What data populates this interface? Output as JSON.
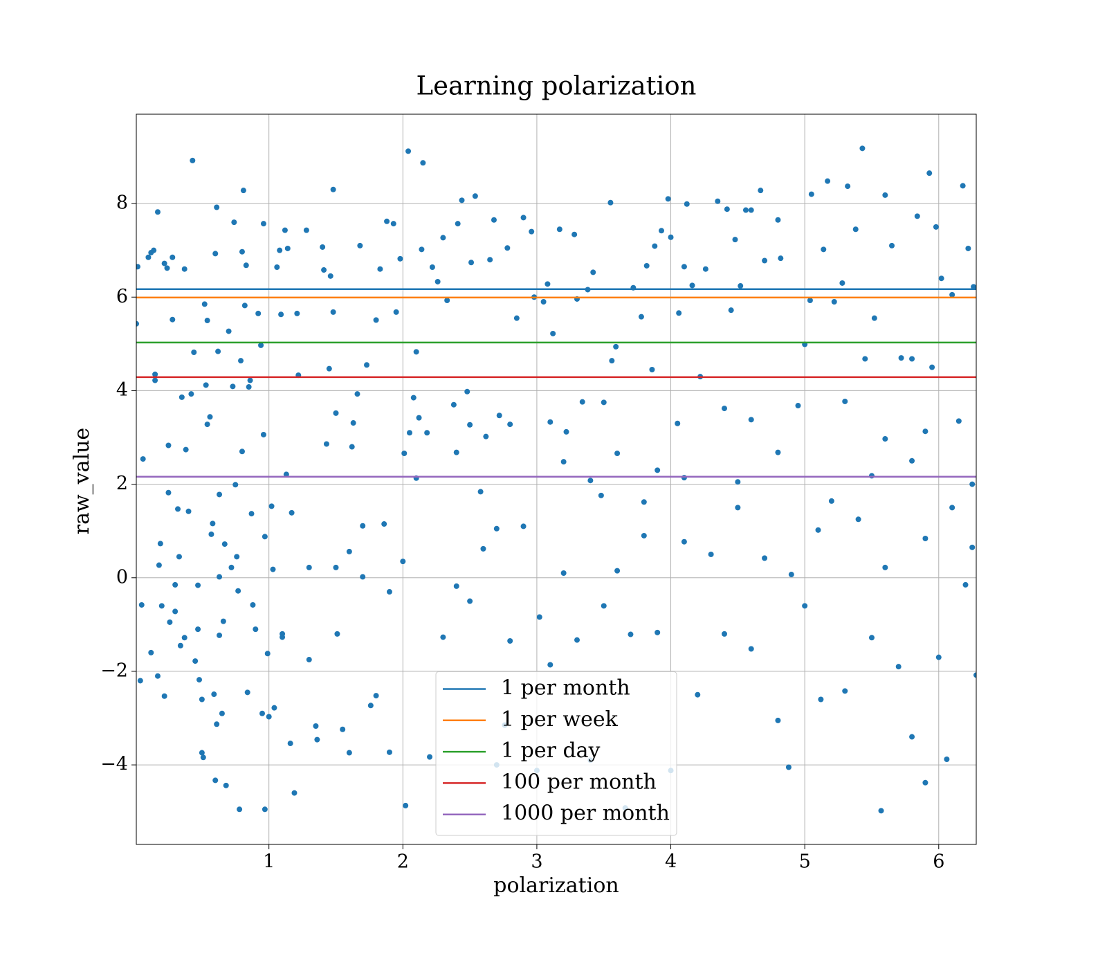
{
  "chart_data": {
    "type": "scatter",
    "title": "Learning polarization",
    "x_label": "polarization",
    "y_label": "raw_value",
    "color": "#1f77b4",
    "grid": true,
    "legend": "lower center",
    "xlim": [
      0.01,
      6.28
    ],
    "ylim": [
      -5.7,
      9.91
    ],
    "xticks": [
      1,
      2,
      3,
      4,
      5,
      6
    ],
    "yticks": [
      {
        "value": -4,
        "label": "−4"
      },
      {
        "value": -2,
        "label": "−2"
      },
      0,
      2,
      4,
      6,
      8
    ],
    "lines": [
      {
        "name": "1 per month",
        "color": "#1f77b4",
        "value": 6.17
      },
      {
        "name": "1 per week",
        "color": "#ff7f0e",
        "value": 5.99
      },
      {
        "name": "1 per day",
        "color": "#2ca02c",
        "value": 5.03
      },
      {
        "name": "100 per month",
        "color": "#d62728",
        "value": 4.29
      },
      {
        "name": "1000 per month",
        "color": "#9467bd",
        "value": 2.16
      }
    ],
    "x": [
      0.01,
      0.02,
      0.04,
      0.05,
      0.06,
      0.1,
      0.12,
      0.14,
      0.12,
      0.15,
      0.15,
      0.17,
      0.18,
      0.19,
      0.17,
      0.2,
      0.22,
      0.22,
      0.24,
      0.25,
      0.25,
      0.26,
      0.28,
      0.28,
      0.3,
      0.3,
      0.32,
      0.33,
      0.34,
      0.35,
      0.37,
      0.37,
      0.38,
      0.4,
      0.42,
      0.43,
      0.44,
      0.45,
      0.47,
      0.47,
      0.48,
      0.5,
      0.5,
      0.51,
      0.52,
      0.53,
      0.54,
      0.54,
      0.56,
      0.57,
      0.58,
      0.59,
      0.6,
      0.61,
      0.61,
      0.6,
      0.62,
      0.63,
      0.63,
      0.63,
      0.65,
      0.66,
      0.67,
      0.68,
      0.7,
      0.72,
      0.73,
      0.74,
      0.75,
      0.76,
      0.77,
      0.78,
      0.79,
      0.8,
      0.8,
      0.81,
      0.82,
      0.83,
      0.84,
      0.85,
      0.86,
      0.87,
      0.88,
      0.9,
      0.92,
      0.94,
      0.95,
      0.96,
      0.96,
      0.97,
      0.97,
      0.99,
      1.0,
      1.02,
      1.03,
      1.04,
      1.06,
      1.08,
      1.09,
      1.1,
      1.12,
      1.13,
      1.14,
      1.16,
      1.17,
      1.19,
      1.21,
      1.22,
      1.28,
      1.35,
      1.36,
      1.4,
      1.41,
      1.43,
      1.45,
      1.46,
      1.48,
      1.48,
      1.5,
      1.51,
      1.55,
      1.6,
      1.62,
      1.63,
      1.66,
      1.68,
      1.7,
      1.73,
      1.76,
      1.8,
      1.83,
      1.86,
      1.88,
      1.93,
      1.95,
      1.98,
      2.01,
      2.02,
      2.04,
      2.05,
      2.08,
      2.1,
      2.12,
      2.14,
      2.15,
      2.18,
      2.22,
      2.26,
      2.3,
      2.33,
      2.38,
      2.41,
      2.44,
      2.48,
      2.51,
      2.54,
      2.58,
      2.62,
      2.65,
      2.68,
      2.72,
      2.76,
      2.78,
      2.85,
      2.9,
      2.96,
      2.98,
      3.02,
      3.05,
      3.08,
      3.12,
      3.17,
      3.22,
      3.28,
      3.3,
      3.34,
      3.38,
      3.42,
      3.48,
      3.55,
      3.56,
      3.59,
      3.66,
      3.72,
      3.78,
      3.82,
      3.86,
      3.88,
      3.93,
      3.98,
      4.0,
      4.06,
      4.1,
      4.12,
      4.16,
      4.22,
      4.26,
      4.35,
      4.42,
      4.45,
      4.48,
      4.52,
      4.56,
      4.6,
      4.67,
      4.7,
      4.8,
      4.82,
      4.88,
      4.95,
      5.0,
      5.04,
      5.05,
      5.12,
      5.14,
      5.17,
      5.22,
      5.28,
      5.32,
      5.38,
      5.43,
      5.45,
      5.52,
      5.57,
      5.6,
      5.65,
      5.72,
      5.8,
      5.84,
      5.9,
      5.93,
      5.95,
      5.98,
      6.02,
      6.06,
      6.1,
      6.18,
      6.22,
      6.25,
      6.26,
      6.28,
      2.0,
      2.3,
      2.5,
      2.8,
      3.1,
      3.3,
      3.5,
      3.7,
      3.9,
      4.2,
      4.4,
      4.6,
      4.8,
      5.0,
      5.3,
      5.5,
      5.8,
      6.0,
      2.2,
      2.7,
      3.0,
      3.4,
      4.0,
      2.6,
      2.9,
      3.2,
      3.6,
      3.8,
      4.1,
      4.3,
      4.5,
      4.7,
      5.1,
      5.4,
      5.6,
      5.9,
      6.2,
      1.3,
      1.5,
      1.7,
      1.9,
      2.4,
      1.1,
      1.3,
      1.6,
      1.8,
      1.9,
      2.1,
      2.4,
      2.7,
      3.2,
      3.4,
      3.6,
      3.9,
      4.1,
      4.5,
      4.8,
      5.2,
      5.5,
      5.8,
      6.1,
      2.5,
      2.8,
      3.1,
      3.5,
      4.05,
      4.4,
      4.6,
      5.3,
      5.6,
      5.9,
      6.15,
      3.8,
      4.9,
      5.7,
      6.25
    ],
    "values": [
      5.43,
      6.65,
      -2.2,
      -0.58,
      2.54,
      6.85,
      6.95,
      7.0,
      -1.6,
      4.35,
      4.22,
      -2.1,
      0.27,
      0.73,
      7.82,
      -0.6,
      -2.53,
      6.72,
      6.62,
      1.82,
      2.83,
      -0.95,
      6.85,
      5.52,
      -0.15,
      -0.72,
      1.47,
      0.45,
      -1.45,
      3.86,
      -1.28,
      6.6,
      2.74,
      1.42,
      3.93,
      8.92,
      4.82,
      -1.78,
      -1.1,
      -0.16,
      -2.18,
      -2.6,
      -3.74,
      -3.84,
      5.85,
      4.12,
      5.5,
      3.28,
      3.44,
      0.93,
      1.16,
      -2.49,
      -4.33,
      -3.13,
      7.92,
      6.93,
      4.84,
      -1.23,
      0.02,
      1.78,
      -2.9,
      -0.93,
      0.72,
      -4.44,
      5.27,
      0.22,
      4.09,
      7.6,
      1.99,
      0.45,
      -0.28,
      -4.95,
      4.64,
      2.7,
      6.97,
      8.28,
      5.82,
      6.68,
      -2.45,
      4.08,
      4.22,
      1.37,
      -0.58,
      -1.1,
      5.65,
      4.97,
      -2.9,
      7.57,
      3.06,
      0.88,
      -4.95,
      -1.62,
      -2.97,
      1.53,
      0.18,
      -2.78,
      6.64,
      7.0,
      5.63,
      -1.27,
      7.43,
      2.21,
      7.04,
      -3.54,
      1.39,
      -4.6,
      5.65,
      4.33,
      7.43,
      -3.17,
      -3.46,
      7.07,
      6.58,
      2.86,
      4.47,
      6.45,
      8.3,
      5.68,
      3.52,
      -1.2,
      -3.24,
      0.56,
      2.8,
      3.31,
      3.93,
      7.1,
      1.11,
      4.55,
      -2.73,
      5.51,
      6.6,
      1.15,
      7.62,
      7.57,
      5.68,
      6.82,
      2.66,
      -4.87,
      9.12,
      3.1,
      3.85,
      4.83,
      3.42,
      7.02,
      8.87,
      3.1,
      6.64,
      6.33,
      7.27,
      5.93,
      3.7,
      7.57,
      8.07,
      3.98,
      6.74,
      8.16,
      1.84,
      3.02,
      6.8,
      7.65,
      3.47,
      -3.15,
      7.05,
      5.55,
      7.7,
      7.4,
      6.0,
      -0.84,
      5.9,
      6.28,
      5.22,
      7.45,
      3.12,
      7.34,
      5.96,
      3.76,
      6.16,
      6.53,
      1.76,
      8.02,
      4.64,
      4.94,
      -4.92,
      6.2,
      5.58,
      6.67,
      4.45,
      7.09,
      7.42,
      8.1,
      7.28,
      5.66,
      6.65,
      7.99,
      6.25,
      4.3,
      6.6,
      8.05,
      7.88,
      5.72,
      7.23,
      6.24,
      7.86,
      7.86,
      8.28,
      6.78,
      7.65,
      6.83,
      -4.05,
      3.68,
      4.99,
      5.93,
      8.2,
      -2.6,
      7.02,
      8.48,
      5.9,
      6.3,
      8.37,
      7.45,
      9.18,
      4.68,
      5.55,
      -4.98,
      8.18,
      7.1,
      4.7,
      4.68,
      7.73,
      -4.38,
      8.65,
      4.5,
      7.5,
      6.4,
      -3.88,
      6.05,
      8.38,
      7.04,
      2.0,
      6.22,
      -2.08,
      0.35,
      -1.27,
      -0.5,
      -1.35,
      -1.86,
      -1.33,
      -0.6,
      -1.21,
      -1.17,
      -2.5,
      -1.2,
      -1.52,
      -3.05,
      -0.6,
      -2.42,
      -1.28,
      -3.4,
      -1.7,
      -3.83,
      -4.0,
      -4.12,
      -3.9,
      -4.12,
      0.62,
      1.1,
      0.1,
      0.15,
      0.9,
      0.77,
      0.5,
      1.5,
      0.42,
      1.02,
      1.25,
      0.22,
      0.84,
      -0.15,
      0.22,
      0.22,
      0.02,
      -0.3,
      -0.18,
      -1.2,
      -1.75,
      -3.74,
      -2.52,
      -3.73,
      2.13,
      2.68,
      1.05,
      2.48,
      2.08,
      2.66,
      2.3,
      2.14,
      2.05,
      2.68,
      1.64,
      2.18,
      2.5,
      1.5,
      3.27,
      3.28,
      3.33,
      3.75,
      3.3,
      3.62,
      3.38,
      3.77,
      2.97,
      3.13,
      3.35,
      1.62,
      0.07,
      -1.9,
      0.65
    ]
  }
}
